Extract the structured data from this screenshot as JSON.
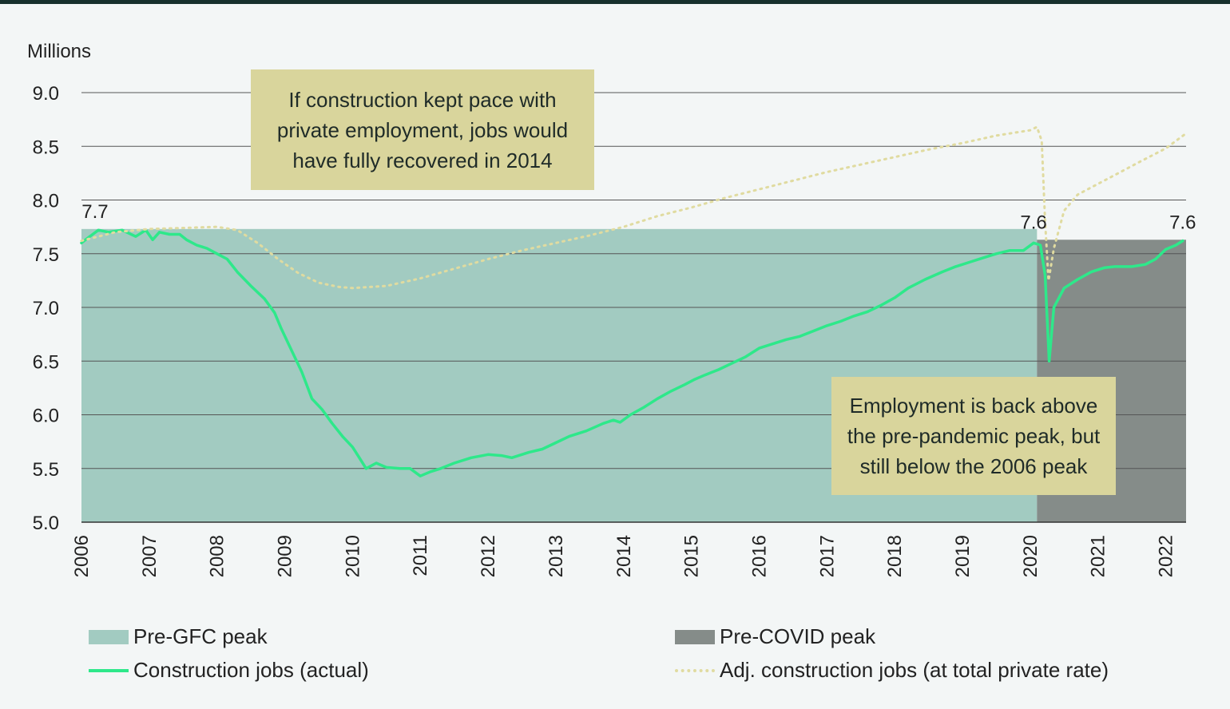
{
  "chart_data": {
    "type": "line",
    "ylabel": "Millions",
    "ylim": [
      5.0,
      9.0
    ],
    "yticks": [
      "5.0",
      "5.5",
      "6.0",
      "6.5",
      "7.0",
      "7.5",
      "8.0",
      "8.5",
      "9.0"
    ],
    "xlim": [
      2006.0,
      2022.3
    ],
    "xticks": [
      "2006",
      "2007",
      "2008",
      "2009",
      "2010",
      "2011",
      "2012",
      "2013",
      "2014",
      "2015",
      "2016",
      "2017",
      "2018",
      "2019",
      "2020",
      "2021",
      "2022"
    ],
    "grid": true,
    "regions": [
      {
        "name": "Pre-GFC peak",
        "x0": 2006.0,
        "x1": 2020.1,
        "y": 7.73,
        "color": "#a2cbc1"
      },
      {
        "name": "Pre-COVID peak",
        "x0": 2020.1,
        "x1": 2022.3,
        "y": 7.63,
        "color": "#858c89"
      }
    ],
    "series": [
      {
        "name": "Construction jobs (actual)",
        "color": "#2ee88a",
        "style": "solid",
        "points": [
          [
            2006.0,
            7.6
          ],
          [
            2006.1,
            7.65
          ],
          [
            2006.25,
            7.72
          ],
          [
            2006.4,
            7.7
          ],
          [
            2006.6,
            7.72
          ],
          [
            2006.8,
            7.66
          ],
          [
            2006.95,
            7.72
          ],
          [
            2007.05,
            7.63
          ],
          [
            2007.15,
            7.7
          ],
          [
            2007.3,
            7.68
          ],
          [
            2007.45,
            7.68
          ],
          [
            2007.55,
            7.63
          ],
          [
            2007.7,
            7.58
          ],
          [
            2007.85,
            7.55
          ],
          [
            2008.0,
            7.5
          ],
          [
            2008.15,
            7.45
          ],
          [
            2008.3,
            7.33
          ],
          [
            2008.5,
            7.2
          ],
          [
            2008.7,
            7.08
          ],
          [
            2008.85,
            6.95
          ],
          [
            2008.95,
            6.8
          ],
          [
            2009.1,
            6.6
          ],
          [
            2009.25,
            6.4
          ],
          [
            2009.4,
            6.15
          ],
          [
            2009.55,
            6.05
          ],
          [
            2009.7,
            5.92
          ],
          [
            2009.85,
            5.8
          ],
          [
            2010.0,
            5.7
          ],
          [
            2010.1,
            5.6
          ],
          [
            2010.2,
            5.5
          ],
          [
            2010.35,
            5.55
          ],
          [
            2010.5,
            5.51
          ],
          [
            2010.7,
            5.5
          ],
          [
            2010.85,
            5.5
          ],
          [
            2011.0,
            5.43
          ],
          [
            2011.15,
            5.47
          ],
          [
            2011.3,
            5.5
          ],
          [
            2011.5,
            5.55
          ],
          [
            2011.75,
            5.6
          ],
          [
            2012.0,
            5.63
          ],
          [
            2012.2,
            5.62
          ],
          [
            2012.35,
            5.6
          ],
          [
            2012.6,
            5.65
          ],
          [
            2012.8,
            5.68
          ],
          [
            2013.0,
            5.74
          ],
          [
            2013.2,
            5.8
          ],
          [
            2013.45,
            5.85
          ],
          [
            2013.7,
            5.92
          ],
          [
            2013.85,
            5.95
          ],
          [
            2013.95,
            5.93
          ],
          [
            2014.1,
            6.0
          ],
          [
            2014.3,
            6.07
          ],
          [
            2014.5,
            6.15
          ],
          [
            2014.7,
            6.22
          ],
          [
            2014.9,
            6.28
          ],
          [
            2015.05,
            6.33
          ],
          [
            2015.2,
            6.37
          ],
          [
            2015.4,
            6.42
          ],
          [
            2015.6,
            6.48
          ],
          [
            2015.8,
            6.54
          ],
          [
            2016.0,
            6.62
          ],
          [
            2016.2,
            6.66
          ],
          [
            2016.4,
            6.7
          ],
          [
            2016.6,
            6.73
          ],
          [
            2016.8,
            6.78
          ],
          [
            2017.0,
            6.83
          ],
          [
            2017.2,
            6.87
          ],
          [
            2017.4,
            6.92
          ],
          [
            2017.6,
            6.96
          ],
          [
            2017.8,
            7.02
          ],
          [
            2018.0,
            7.09
          ],
          [
            2018.2,
            7.18
          ],
          [
            2018.45,
            7.26
          ],
          [
            2018.7,
            7.33
          ],
          [
            2018.9,
            7.38
          ],
          [
            2019.1,
            7.42
          ],
          [
            2019.3,
            7.46
          ],
          [
            2019.5,
            7.5
          ],
          [
            2019.7,
            7.53
          ],
          [
            2019.9,
            7.53
          ],
          [
            2020.05,
            7.6
          ],
          [
            2020.15,
            7.58
          ],
          [
            2020.22,
            7.3
          ],
          [
            2020.28,
            6.5
          ],
          [
            2020.35,
            7.0
          ],
          [
            2020.5,
            7.18
          ],
          [
            2020.7,
            7.26
          ],
          [
            2020.9,
            7.33
          ],
          [
            2021.1,
            7.37
          ],
          [
            2021.25,
            7.38
          ],
          [
            2021.5,
            7.38
          ],
          [
            2021.7,
            7.4
          ],
          [
            2021.85,
            7.45
          ],
          [
            2022.0,
            7.54
          ],
          [
            2022.15,
            7.58
          ],
          [
            2022.25,
            7.62
          ]
        ]
      },
      {
        "name": "Adj. construction jobs (at total private rate)",
        "color": "#e0dba0",
        "style": "dotted",
        "points": [
          [
            2006.0,
            7.62
          ],
          [
            2006.5,
            7.7
          ],
          [
            2007.0,
            7.73
          ],
          [
            2007.5,
            7.74
          ],
          [
            2008.0,
            7.75
          ],
          [
            2008.3,
            7.72
          ],
          [
            2008.6,
            7.6
          ],
          [
            2008.9,
            7.45
          ],
          [
            2009.2,
            7.32
          ],
          [
            2009.5,
            7.23
          ],
          [
            2009.8,
            7.19
          ],
          [
            2010.0,
            7.18
          ],
          [
            2010.5,
            7.2
          ],
          [
            2011.0,
            7.27
          ],
          [
            2011.5,
            7.36
          ],
          [
            2012.0,
            7.45
          ],
          [
            2012.5,
            7.53
          ],
          [
            2013.0,
            7.6
          ],
          [
            2013.5,
            7.67
          ],
          [
            2014.0,
            7.75
          ],
          [
            2014.5,
            7.85
          ],
          [
            2015.0,
            7.93
          ],
          [
            2015.5,
            8.02
          ],
          [
            2016.0,
            8.1
          ],
          [
            2016.5,
            8.18
          ],
          [
            2017.0,
            8.26
          ],
          [
            2017.5,
            8.33
          ],
          [
            2018.0,
            8.4
          ],
          [
            2018.5,
            8.47
          ],
          [
            2019.0,
            8.53
          ],
          [
            2019.5,
            8.6
          ],
          [
            2020.0,
            8.65
          ],
          [
            2020.1,
            8.68
          ],
          [
            2020.17,
            8.55
          ],
          [
            2020.22,
            7.8
          ],
          [
            2020.27,
            7.25
          ],
          [
            2020.35,
            7.55
          ],
          [
            2020.5,
            7.9
          ],
          [
            2020.7,
            8.05
          ],
          [
            2021.0,
            8.15
          ],
          [
            2021.3,
            8.25
          ],
          [
            2021.6,
            8.35
          ],
          [
            2022.0,
            8.48
          ],
          [
            2022.3,
            8.62
          ]
        ]
      }
    ],
    "peak_labels": [
      {
        "text": "7.7",
        "x": 2006.2,
        "y": 7.73
      },
      {
        "text": "7.6",
        "x": 2020.05,
        "y": 7.63
      },
      {
        "text": "7.6",
        "x": 2022.25,
        "y": 7.63
      }
    ],
    "annotations": [
      {
        "text": "If construction kept pace with private employment, jobs would have fully recovered in 2014"
      },
      {
        "text": "Employment is back above the pre-pandemic peak, but still below the 2006 peak"
      }
    ]
  },
  "legend": {
    "pre_gfc": "Pre-GFC peak",
    "pre_covid": "Pre-COVID peak",
    "actual": "Construction jobs (actual)",
    "adjusted": "Adj. construction jobs (at total private rate)"
  }
}
